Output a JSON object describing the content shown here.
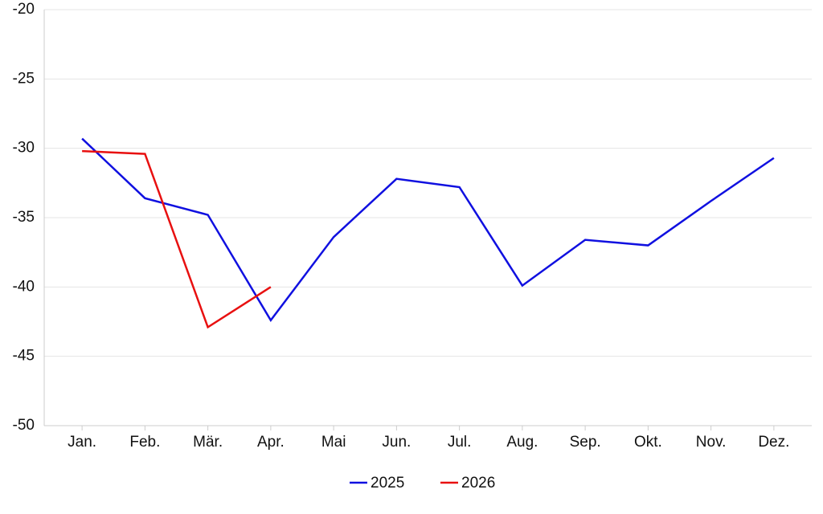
{
  "chart_data": {
    "type": "line",
    "categories": [
      "Jan.",
      "Feb.",
      "Mär.",
      "Apr.",
      "Mai",
      "Jun.",
      "Jul.",
      "Aug.",
      "Sep.",
      "Okt.",
      "Nov.",
      "Dez."
    ],
    "series": [
      {
        "name": "2025",
        "color": "#1010e0",
        "values": [
          -29.3,
          -33.6,
          -34.8,
          -42.4,
          -36.4,
          -32.2,
          -32.8,
          -39.9,
          -36.6,
          -37.0,
          -33.8,
          -30.7
        ]
      },
      {
        "name": "2026",
        "color": "#e81010",
        "values": [
          -30.2,
          -30.4,
          -42.9,
          -40.0,
          null,
          null,
          null,
          null,
          null,
          null,
          null,
          null
        ]
      }
    ],
    "ylim": [
      -50,
      -20
    ],
    "yticks": [
      -50,
      -45,
      -40,
      -35,
      -30,
      -25,
      -20
    ],
    "grid": true,
    "legend": "bottom"
  }
}
